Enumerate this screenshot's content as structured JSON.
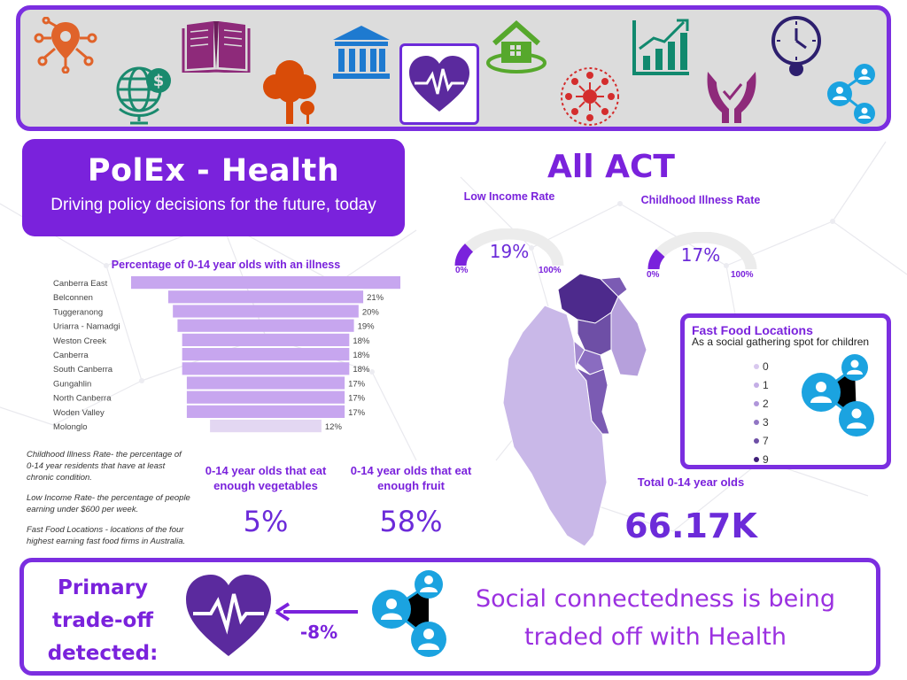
{
  "colors": {
    "accent": "#7a22dc",
    "border": "#7b2ee0",
    "bar": "#c7a6ef",
    "bar_light": "#e3d7f2",
    "navbg": "#dcdcdc",
    "blue": "#1ba3e0"
  },
  "nav": {
    "icons": [
      "location-network-icon",
      "globe-dollar-icon",
      "book-icon",
      "tree-icon",
      "bank-icon",
      "heart-health-icon",
      "house-icon",
      "growth-chart-icon",
      "community-icon",
      "hands-care-icon",
      "clock-icon",
      "social-network-icon"
    ],
    "active": "heart-health-icon"
  },
  "header": {
    "title": "PolEx - Health",
    "subtitle": "Driving policy decisions for the future, today"
  },
  "chart_data": {
    "type": "bar",
    "orientation": "horizontal-centered",
    "title": "Percentage of 0-14 year olds with an illness",
    "categories": [
      "Canberra East",
      "Belconnen",
      "Tuggeranong",
      "Uriarra - Namadgi",
      "Weston Creek",
      "Canberra",
      "South Canberra",
      "Gungahlin",
      "North Canberra",
      "Woden Valley",
      "Molonglo"
    ],
    "values": [
      29,
      21,
      20,
      19,
      18,
      18,
      18,
      17,
      17,
      17,
      12
    ],
    "labels": [
      "",
      "21%",
      "20%",
      "19%",
      "18%",
      "18%",
      "18%",
      "17%",
      "17%",
      "17%",
      "12%"
    ],
    "unit": "%"
  },
  "notes": {
    "childhood": "Childhood Illness Rate- the percentage of 0-14 year residents that have at least chronic condition.",
    "income": "Low Income Rate- the percentage of people earning under $600 per week.",
    "fastfood": "Fast Food Locations - locations of the four highest earning fast food firms in Australia."
  },
  "kpis": {
    "veg_label": "0-14 year olds that eat enough vegetables",
    "veg_value": "5%",
    "fruit_label": "0-14 year olds that eat enough fruit",
    "fruit_value": "58%"
  },
  "region": {
    "title": "All ACT"
  },
  "gauges": [
    {
      "label": "Low Income Rate",
      "value": "19%",
      "fraction": 0.19,
      "min": "0%",
      "max": "100%"
    },
    {
      "label": "Childhood Illness Rate",
      "value": "17%",
      "fraction": 0.17,
      "min": "0%",
      "max": "100%"
    }
  ],
  "fastfood": {
    "title": "Fast Food Locations",
    "subtitle": "As a social gathering spot for children",
    "legend": [
      {
        "label": "0",
        "color": "#d8c8ee"
      },
      {
        "label": "1",
        "color": "#c4aee6"
      },
      {
        "label": "2",
        "color": "#b096da"
      },
      {
        "label": "3",
        "color": "#9176c4"
      },
      {
        "label": "7",
        "color": "#6e4fa6"
      },
      {
        "label": "9",
        "color": "#3f1f78"
      }
    ]
  },
  "total": {
    "label": "Total 0-14 year olds",
    "value": "66.17K"
  },
  "tradeoff": {
    "label": "Primary trade-off detected:",
    "pct": "-8%",
    "message": "Social connectedness is being traded off with Health"
  }
}
